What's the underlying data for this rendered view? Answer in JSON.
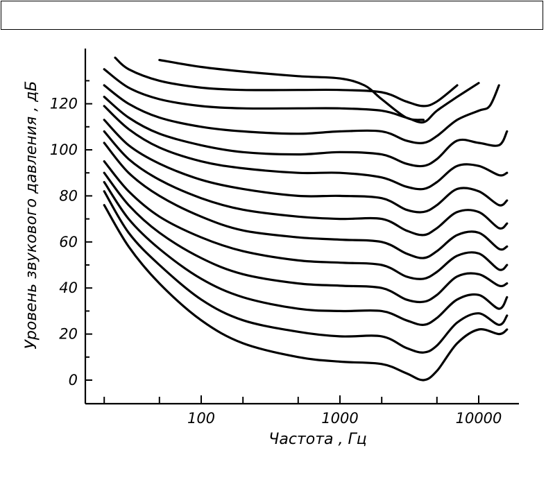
{
  "header_box": {
    "text": ""
  },
  "chart_data": {
    "type": "line",
    "title": "",
    "xlabel": "Частота , Гц",
    "ylabel": "Уровень звукового давления , дБ",
    "xscale": "log",
    "xlim": [
      16,
      18000
    ],
    "ylim": [
      -8,
      144
    ],
    "x_ticks": [
      100,
      1000,
      10000
    ],
    "x_tick_labels": [
      "100",
      "1000",
      "10000"
    ],
    "y_ticks": [
      0,
      20,
      40,
      60,
      80,
      100,
      120
    ],
    "y_tick_labels": [
      "0",
      "20",
      "40",
      "60",
      "80",
      "100",
      "120"
    ],
    "grid": false,
    "legend": "none",
    "series": [
      {
        "x": [
          20,
          30,
          50,
          100,
          200,
          500,
          1000,
          2000,
          3000,
          4000,
          5000,
          7000,
          10000,
          14000,
          16000
        ],
        "y": [
          76,
          58,
          42,
          26,
          16,
          10,
          8,
          7,
          3,
          0,
          4,
          16,
          22,
          20,
          22
        ]
      },
      {
        "x": [
          20,
          30,
          50,
          100,
          200,
          500,
          1000,
          2000,
          3000,
          4000,
          5000,
          7000,
          10000,
          14000,
          16000
        ],
        "y": [
          82,
          64,
          50,
          35,
          26,
          21,
          19,
          19,
          14,
          12,
          15,
          25,
          29,
          24,
          28
        ]
      },
      {
        "x": [
          20,
          30,
          50,
          100,
          200,
          500,
          1000,
          2000,
          3000,
          4000,
          5000,
          7000,
          10000,
          14000,
          16000
        ],
        "y": [
          86,
          70,
          57,
          44,
          36,
          31,
          30,
          30,
          26,
          24,
          27,
          35,
          37,
          31,
          36
        ]
      },
      {
        "x": [
          20,
          30,
          50,
          100,
          200,
          500,
          1000,
          2000,
          3000,
          4000,
          5000,
          7000,
          10000,
          14000,
          16000
        ],
        "y": [
          90,
          76,
          64,
          53,
          46,
          42,
          41,
          40,
          35,
          34,
          37,
          45,
          46,
          41,
          42
        ]
      },
      {
        "x": [
          20,
          30,
          50,
          100,
          200,
          500,
          1000,
          2000,
          3000,
          4000,
          5000,
          7000,
          10000,
          14000,
          16000
        ],
        "y": [
          95,
          82,
          71,
          62,
          56,
          52,
          51,
          50,
          45,
          44,
          47,
          54,
          55,
          48,
          50
        ]
      },
      {
        "x": [
          20,
          30,
          50,
          100,
          200,
          500,
          1000,
          2000,
          3000,
          4000,
          5000,
          7000,
          10000,
          14000,
          16000
        ],
        "y": [
          103,
          90,
          80,
          71,
          65,
          62,
          61,
          60,
          55,
          53,
          56,
          63,
          64,
          57,
          58
        ]
      },
      {
        "x": [
          20,
          30,
          50,
          100,
          200,
          500,
          1000,
          2000,
          3000,
          4000,
          5000,
          7000,
          10000,
          14000,
          16000
        ],
        "y": [
          108,
          96,
          87,
          79,
          74,
          71,
          70,
          70,
          65,
          63,
          66,
          73,
          73,
          66,
          68
        ]
      },
      {
        "x": [
          20,
          30,
          50,
          100,
          200,
          500,
          1000,
          2000,
          3000,
          4000,
          5000,
          7000,
          10000,
          14000,
          16000
        ],
        "y": [
          113,
          102,
          94,
          87,
          83,
          80,
          80,
          79,
          74,
          73,
          76,
          83,
          82,
          76,
          78
        ]
      },
      {
        "x": [
          20,
          30,
          50,
          100,
          200,
          500,
          1000,
          2000,
          3000,
          4000,
          5000,
          7000,
          10000,
          14000,
          16000
        ],
        "y": [
          119,
          109,
          101,
          95,
          92,
          90,
          90,
          88,
          84,
          83,
          86,
          93,
          93,
          89,
          90
        ]
      },
      {
        "x": [
          20,
          30,
          50,
          100,
          200,
          500,
          1000,
          2000,
          3000,
          4000,
          5000,
          7000,
          10000,
          14000,
          16000
        ],
        "y": [
          123,
          114,
          107,
          102,
          99,
          98,
          99,
          98,
          94,
          93,
          96,
          104,
          103,
          102,
          108
        ]
      },
      {
        "x": [
          20,
          30,
          50,
          100,
          200,
          500,
          1000,
          2000,
          3000,
          4000,
          5000,
          7000,
          10000,
          12000,
          14000
        ],
        "y": [
          128,
          120,
          114,
          110,
          108,
          107,
          108,
          108,
          104,
          103,
          106,
          113,
          117,
          119,
          128
        ]
      },
      {
        "x": [
          20,
          30,
          50,
          100,
          200,
          500,
          1000,
          2000,
          3000,
          4000,
          5000,
          7000,
          10000
        ],
        "y": [
          135,
          127,
          122,
          119,
          118,
          118,
          118,
          117,
          114,
          112,
          117,
          123,
          129
        ]
      },
      {
        "x": [
          24,
          30,
          50,
          100,
          200,
          500,
          1000,
          2000,
          3000,
          4000,
          5000,
          7000
        ],
        "y": [
          140,
          135,
          130,
          127,
          126,
          126,
          126,
          125,
          121,
          119,
          121,
          128
        ]
      },
      {
        "x": [
          50,
          100,
          200,
          500,
          1000,
          1500,
          2000,
          3000,
          4000
        ],
        "y": [
          139,
          136,
          134,
          132,
          131,
          128,
          122,
          114,
          113
        ]
      }
    ]
  }
}
